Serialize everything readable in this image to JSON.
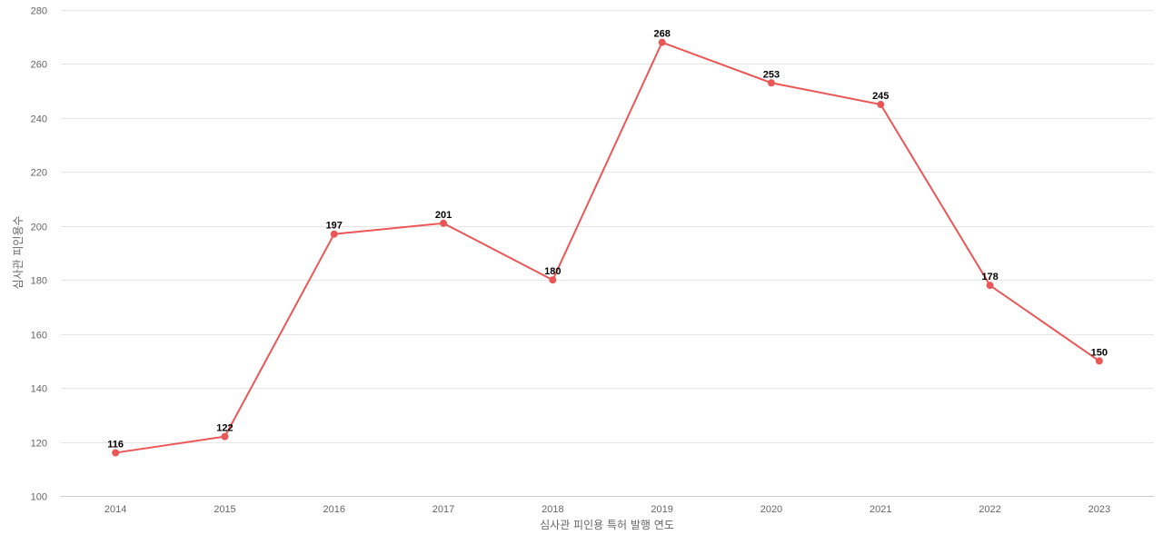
{
  "chart_data": {
    "type": "line",
    "title": "",
    "xlabel": "심사관 피인용 특허 발행 연도",
    "ylabel": "심사관 피인용수",
    "x": [
      "2014",
      "2015",
      "2016",
      "2017",
      "2018",
      "2019",
      "2020",
      "2021",
      "2022",
      "2023"
    ],
    "series": [
      {
        "values": [
          116,
          122,
          197,
          201,
          180,
          268,
          253,
          245,
          178,
          150
        ],
        "color": "#eb5757"
      }
    ],
    "ylim": [
      100,
      280
    ],
    "yticks": [
      100,
      120,
      140,
      160,
      180,
      200,
      220,
      240,
      260,
      280
    ],
    "grid": true,
    "legend": "none",
    "data_labels": true
  }
}
